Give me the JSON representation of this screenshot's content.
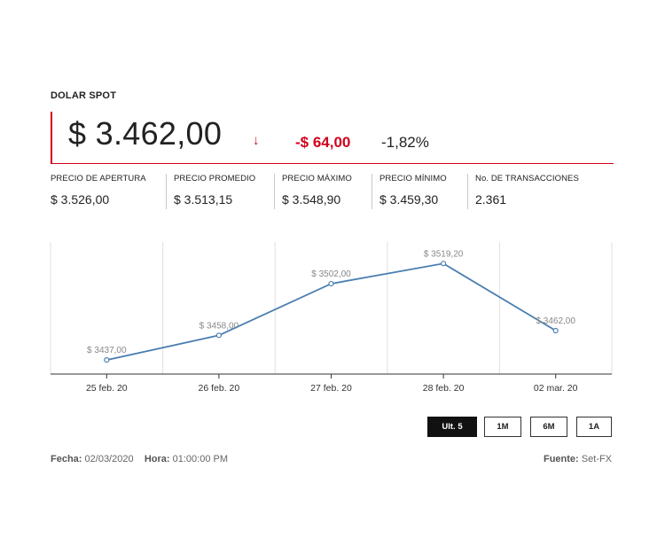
{
  "title": "DOLAR SPOT",
  "price": {
    "current": "$ 3.462,00",
    "arrow_icon": "arrow-down-icon",
    "change_abs": "-$ 64,00",
    "change_pct": "-1,82%",
    "down_color": "#d0021b"
  },
  "stats": [
    {
      "label": "PRECIO DE APERTURA",
      "value": "$ 3.526,00"
    },
    {
      "label": "PRECIO PROMEDIO",
      "value": "$ 3.513,15"
    },
    {
      "label": "PRECIO MÁXIMO",
      "value": "$ 3.548,90"
    },
    {
      "label": "PRECIO MÍNIMO",
      "value": "$ 3.459,30"
    },
    {
      "label": "No. DE TRANSACCIONES",
      "value": "2.361"
    }
  ],
  "chart_data": {
    "type": "line",
    "categories": [
      "25 feb. 20",
      "26 feb. 20",
      "27 feb. 20",
      "28 feb. 20",
      "02 mar. 20"
    ],
    "series": [
      {
        "values": [
          3437.0,
          3458.0,
          3502.0,
          3519.2,
          3462.0
        ],
        "data_labels": [
          "$ 3437,00",
          "$ 3458,00",
          "$ 3502,00",
          "$ 3519,20",
          "$ 3462,00"
        ]
      }
    ],
    "ylim": [
      3425,
      3530
    ],
    "grid": true,
    "line_color": "#4a7eb0"
  },
  "range_buttons": [
    {
      "label": "Ult. 5",
      "active": true
    },
    {
      "label": "1M",
      "active": false
    },
    {
      "label": "6M",
      "active": false
    },
    {
      "label": "1A",
      "active": false
    }
  ],
  "footer": {
    "fecha_label": "Fecha:",
    "fecha_value": "02/03/2020",
    "hora_label": "Hora:",
    "hora_value": "01:00:00 PM",
    "fuente_label": "Fuente:",
    "fuente_value": "Set-FX"
  }
}
